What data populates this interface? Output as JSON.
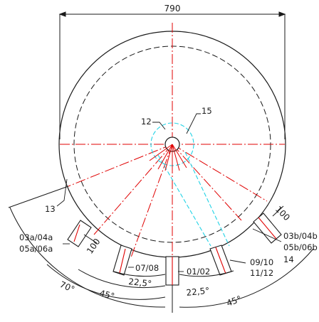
{
  "drawing": {
    "overall_width_dim": "790",
    "callouts": {
      "c12": "12",
      "c15": "15",
      "c13": "13",
      "c14": "14"
    },
    "nozzles": {
      "n0304a": "03a/04a",
      "n0506a": "05a/06a",
      "n0708": "07/08",
      "n0102": "01/02",
      "n0910": "09/10",
      "n1112": "11/12",
      "n0304b": "03b/04b",
      "n0506b": "05b/06b"
    },
    "dims": {
      "left_nozzle_len": "100",
      "right_nozzle_len": "100",
      "angle_70": "70°",
      "angle_45_left": "45°",
      "angle_22_left": "22,5°",
      "angle_22_right": "22,5°",
      "angle_45_right": "45°"
    },
    "colors": {
      "outline": "#1a1a1a",
      "centerline": "#e00000",
      "highlight": "#22d3e6"
    }
  }
}
